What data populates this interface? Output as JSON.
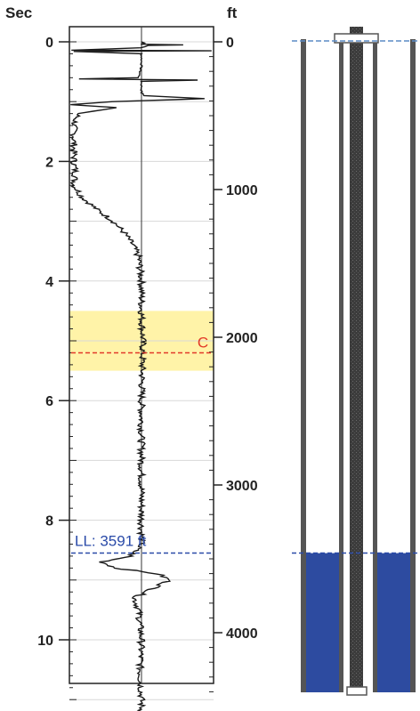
{
  "chart_data": {
    "type": "line",
    "left_axis": {
      "label": "Sec",
      "ticks": [
        0,
        2,
        4,
        6,
        8,
        10
      ],
      "range": [
        -0.05,
        11.2
      ]
    },
    "right_axis": {
      "label": "ft",
      "ticks": [
        0,
        1000,
        2000,
        3000,
        4000
      ],
      "range_ft": [
        0,
        4420
      ]
    },
    "zone": {
      "from_sec": 4.5,
      "to_sec": 5.5,
      "color": "#fff3a8"
    },
    "markers": [
      {
        "label": "C",
        "sec": 5.2,
        "color": "#e23a2a"
      },
      {
        "label": "LL: 3591 ft",
        "sec": 8.55,
        "color": "#2a4aa8"
      }
    ],
    "series": [
      {
        "points": [
          [
            0.0,
            0.5
          ],
          [
            0.02,
            0.52
          ],
          [
            0.04,
            0.5
          ],
          [
            0.05,
            0.8
          ],
          [
            0.06,
            0.55
          ],
          [
            0.1,
            0.5
          ],
          [
            0.14,
            0.0
          ],
          [
            0.15,
            1.0
          ],
          [
            0.16,
            0.02
          ],
          [
            0.2,
            0.5
          ],
          [
            0.4,
            0.5
          ],
          [
            0.6,
            0.48
          ],
          [
            0.62,
            0.05
          ],
          [
            0.64,
            0.9
          ],
          [
            0.66,
            0.5
          ],
          [
            0.85,
            0.5
          ],
          [
            0.9,
            0.52
          ],
          [
            0.95,
            0.95
          ],
          [
            1.0,
            0.3
          ],
          [
            1.05,
            0.0
          ],
          [
            1.1,
            0.32
          ],
          [
            1.2,
            0.05
          ],
          [
            1.3,
            0.03
          ],
          [
            1.4,
            0.02
          ],
          [
            1.6,
            0.02
          ],
          [
            1.8,
            0.02
          ],
          [
            2.0,
            0.02
          ],
          [
            2.2,
            0.03
          ],
          [
            2.4,
            0.02
          ],
          [
            2.6,
            0.08
          ],
          [
            2.8,
            0.18
          ],
          [
            3.0,
            0.3
          ],
          [
            3.2,
            0.38
          ],
          [
            3.4,
            0.44
          ],
          [
            3.6,
            0.48
          ],
          [
            3.8,
            0.49
          ],
          [
            4.0,
            0.5
          ],
          [
            4.5,
            0.5
          ],
          [
            5.0,
            0.51
          ],
          [
            6.0,
            0.5
          ],
          [
            7.0,
            0.5
          ],
          [
            8.0,
            0.5
          ],
          [
            8.4,
            0.5
          ],
          [
            8.6,
            0.42
          ],
          [
            8.7,
            0.22
          ],
          [
            8.8,
            0.32
          ],
          [
            8.9,
            0.62
          ],
          [
            9.0,
            0.7
          ],
          [
            9.1,
            0.62
          ],
          [
            9.3,
            0.45
          ],
          [
            9.5,
            0.48
          ],
          [
            10.0,
            0.5
          ],
          [
            10.5,
            0.49
          ],
          [
            11.0,
            0.5
          ],
          [
            11.2,
            0.5
          ]
        ]
      }
    ],
    "well": {
      "fluid_level_ft": 3591,
      "fluid_color": "#2d4ba0",
      "surface_marker_color": "#5b8cc6"
    }
  }
}
